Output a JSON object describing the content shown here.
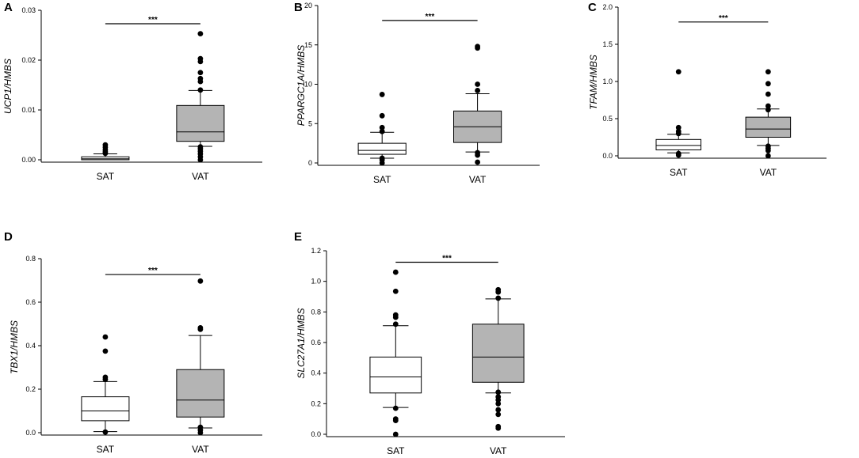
{
  "chart_data": [
    {
      "panel": "A",
      "type": "box",
      "ylabel": "UCP1/HMBS",
      "ylim": [
        0,
        0.03
      ],
      "yticks": [
        0.0,
        0.01,
        0.02,
        0.03
      ],
      "ytick_labels": [
        "0.00",
        "0.01",
        "0.02",
        "0.03"
      ],
      "categories": [
        "SAT",
        "VAT"
      ],
      "colors": [
        "#ffffff",
        "#b4b4b4"
      ],
      "boxes": [
        {
          "q1": 0.0,
          "median": 0.0002,
          "q3": 0.0006,
          "whisker_low": 0.0,
          "whisker_high": 0.0012,
          "outliers": [
            0.0013,
            0.0016,
            0.002,
            0.0025,
            0.003
          ]
        },
        {
          "q1": 0.0037,
          "median": 0.0056,
          "q3": 0.0109,
          "whisker_low": 0.0027,
          "whisker_high": 0.0139,
          "outliers": [
            0.0,
            0.0006,
            0.0012,
            0.0017,
            0.0022,
            0.0026,
            0.014,
            0.0157,
            0.0163,
            0.0175,
            0.0197,
            0.0203,
            0.0253
          ]
        }
      ],
      "significance": {
        "label": "***",
        "y": 0.0273
      }
    },
    {
      "panel": "B",
      "type": "box",
      "ylabel": "PPARGC1A/HMBS",
      "ylim": [
        0,
        20
      ],
      "yticks": [
        0,
        5,
        10,
        15,
        20
      ],
      "ytick_labels": [
        "0",
        "5",
        "10",
        "15",
        "20"
      ],
      "categories": [
        "SAT",
        "VAT"
      ],
      "colors": [
        "#ffffff",
        "#b4b4b4"
      ],
      "boxes": [
        {
          "q1": 1.1,
          "median": 1.6,
          "q3": 2.5,
          "whisker_low": 0.6,
          "whisker_high": 3.9,
          "outliers": [
            0.0,
            0.4,
            0.6,
            4.0,
            4.5,
            6.0,
            8.7
          ]
        },
        {
          "q1": 2.6,
          "median": 4.6,
          "q3": 6.6,
          "whisker_low": 1.4,
          "whisker_high": 8.8,
          "outliers": [
            0.1,
            1.0,
            1.3,
            9.2,
            10.0,
            14.6,
            14.8
          ]
        }
      ],
      "significance": {
        "label": "***",
        "y": 18.1
      }
    },
    {
      "panel": "C",
      "type": "box",
      "ylabel": "TFAM/HMBS",
      "ylim": [
        0,
        2.0
      ],
      "yticks": [
        0.0,
        0.5,
        1.0,
        1.5,
        2.0
      ],
      "ytick_labels": [
        "0.0",
        "0.5",
        "1.0",
        "1.5",
        "2.0"
      ],
      "categories": [
        "SAT",
        "VAT"
      ],
      "colors": [
        "#ffffff",
        "#b4b4b4"
      ],
      "boxes": [
        {
          "q1": 0.08,
          "median": 0.14,
          "q3": 0.22,
          "whisker_low": 0.04,
          "whisker_high": 0.29,
          "outliers": [
            0.01,
            0.03,
            0.3,
            0.33,
            0.38,
            1.13
          ]
        },
        {
          "q1": 0.25,
          "median": 0.36,
          "q3": 0.52,
          "whisker_low": 0.14,
          "whisker_high": 0.63,
          "outliers": [
            0.0,
            0.07,
            0.1,
            0.13,
            0.62,
            0.67,
            0.83,
            0.97,
            1.13
          ]
        }
      ],
      "significance": {
        "label": "***",
        "y": 1.8
      }
    },
    {
      "panel": "D",
      "type": "box",
      "ylabel": "TBX1/HMBS",
      "ylim": [
        0,
        0.8
      ],
      "yticks": [
        0.0,
        0.2,
        0.4,
        0.6,
        0.8
      ],
      "ytick_labels": [
        "0.0",
        "0.2",
        "0.4",
        "0.6",
        "0.8"
      ],
      "categories": [
        "SAT",
        "VAT"
      ],
      "colors": [
        "#ffffff",
        "#b4b4b4"
      ],
      "boxes": [
        {
          "q1": 0.055,
          "median": 0.1,
          "q3": 0.165,
          "whisker_low": 0.005,
          "whisker_high": 0.235,
          "outliers": [
            0.003,
            0.245,
            0.255,
            0.375,
            0.44
          ]
        },
        {
          "q1": 0.072,
          "median": 0.15,
          "q3": 0.29,
          "whisker_low": 0.022,
          "whisker_high": 0.447,
          "outliers": [
            0.0,
            0.012,
            0.025,
            0.475,
            0.482,
            0.697
          ]
        }
      ],
      "significance": {
        "label": "***",
        "y": 0.727
      }
    },
    {
      "panel": "E",
      "type": "box",
      "ylabel": "SLC27A1/HMBS",
      "ylim": [
        0,
        1.2
      ],
      "yticks": [
        0.0,
        0.2,
        0.4,
        0.6,
        0.8,
        1.0,
        1.2
      ],
      "ytick_labels": [
        "0.0",
        "0.2",
        "0.4",
        "0.6",
        "0.8",
        "1.0",
        "1.2"
      ],
      "categories": [
        "SAT",
        "VAT"
      ],
      "colors": [
        "#ffffff",
        "#b4b4b4"
      ],
      "boxes": [
        {
          "q1": 0.27,
          "median": 0.375,
          "q3": 0.505,
          "whisker_low": 0.175,
          "whisker_high": 0.71,
          "outliers": [
            0.0,
            0.09,
            0.1,
            0.17,
            0.72,
            0.765,
            0.78,
            0.935,
            1.06
          ]
        },
        {
          "q1": 0.34,
          "median": 0.505,
          "q3": 0.72,
          "whisker_low": 0.27,
          "whisker_high": 0.885,
          "outliers": [
            0.04,
            0.05,
            0.13,
            0.16,
            0.2,
            0.225,
            0.245,
            0.275,
            0.89,
            0.93,
            0.945
          ]
        }
      ],
      "significance": {
        "label": "***",
        "y": 1.125
      }
    }
  ]
}
